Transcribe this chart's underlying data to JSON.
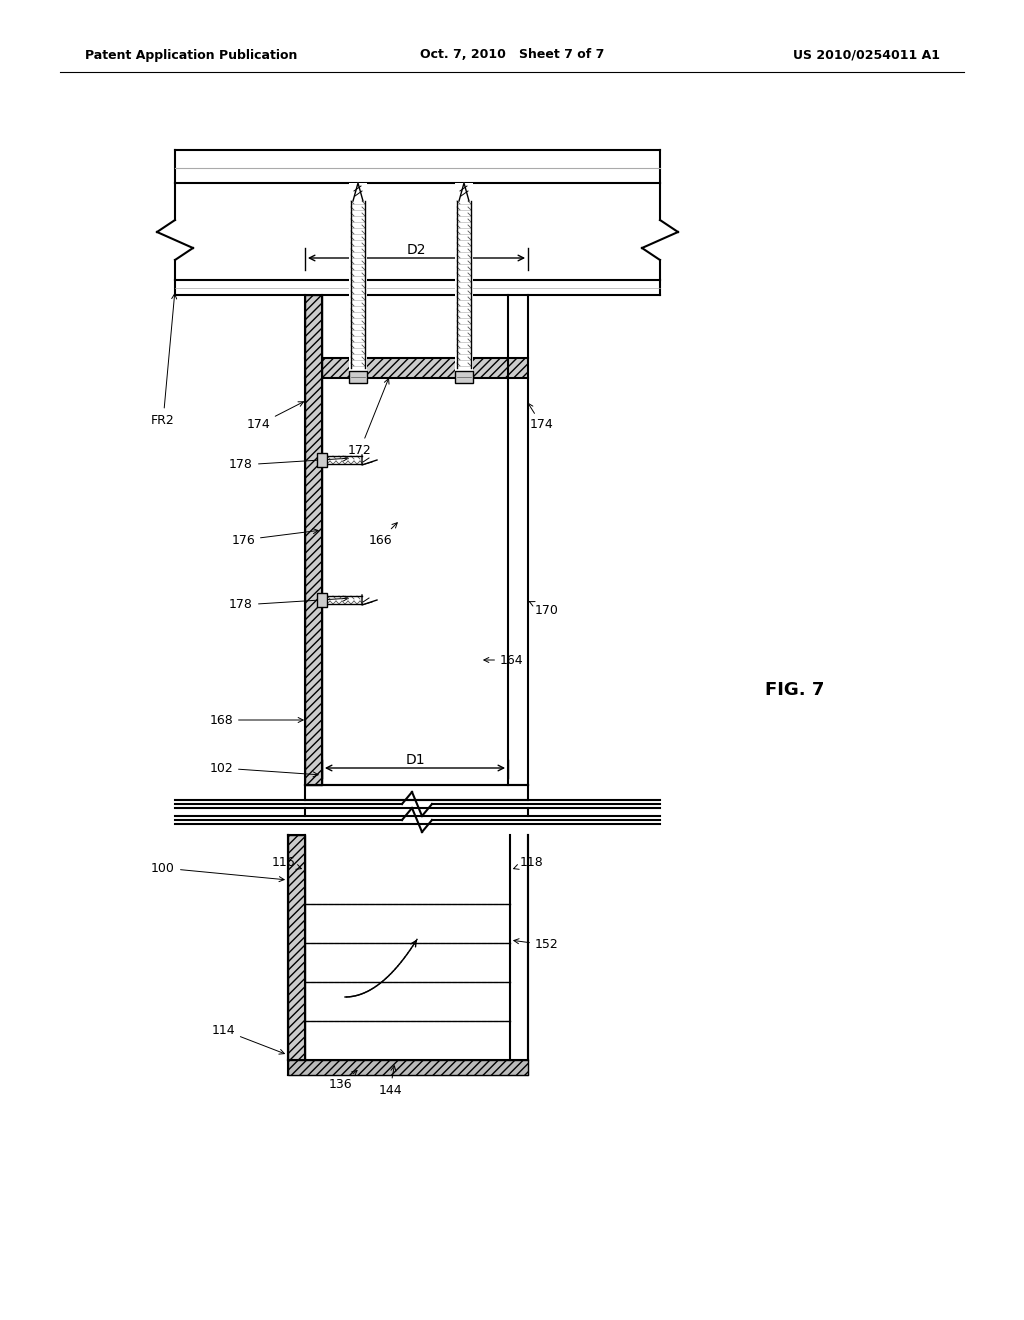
{
  "header_left": "Patent Application Publication",
  "header_mid": "Oct. 7, 2010   Sheet 7 of 7",
  "header_right": "US 2010/0254011 A1",
  "fig_label": "FIG. 7",
  "bg_color": "#ffffff",
  "lc": "#000000",
  "gray": "#888888",
  "hatch_gray": "#666666"
}
